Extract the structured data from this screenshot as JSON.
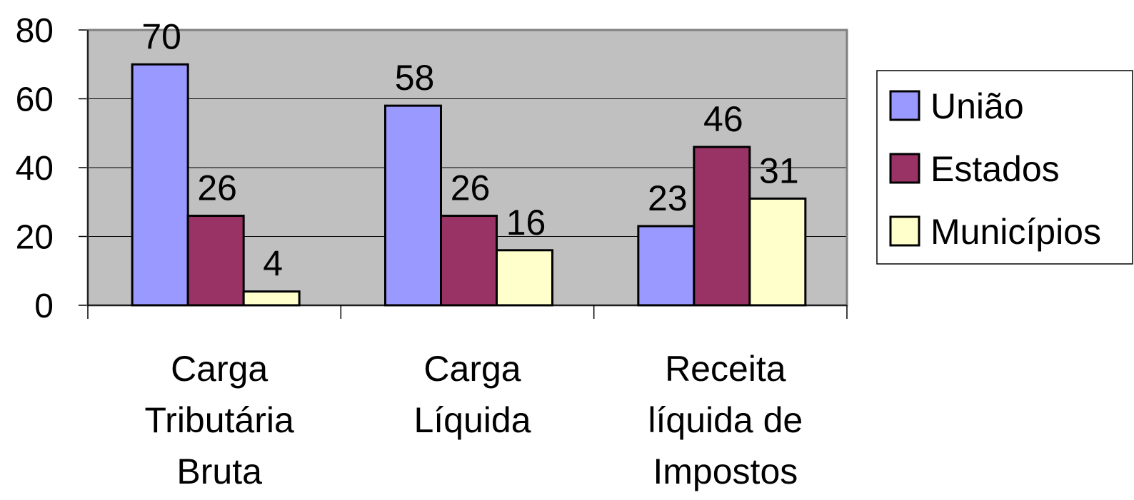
{
  "chart_data": {
    "type": "bar",
    "categories": [
      "Carga Tributária Bruta",
      "Carga Líquida",
      "Receita líquida de Impostos"
    ],
    "series": [
      {
        "name": "União",
        "color": "#9999ff",
        "values": [
          70,
          58,
          23
        ]
      },
      {
        "name": "Estados",
        "color": "#993366",
        "values": [
          26,
          26,
          46
        ]
      },
      {
        "name": "Municípios",
        "color": "#ffffcc",
        "values": [
          4,
          16,
          31
        ]
      }
    ],
    "ylim": [
      0,
      80
    ],
    "yticks": [
      0,
      20,
      40,
      60,
      80
    ],
    "grid": true,
    "legend": "right"
  }
}
